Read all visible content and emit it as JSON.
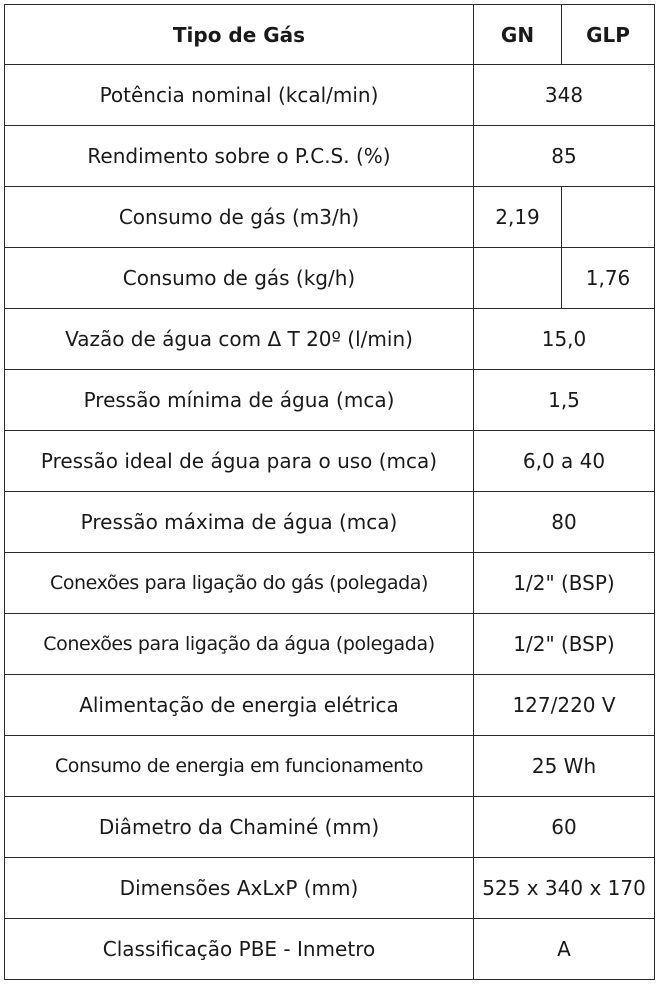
{
  "header": {
    "label": "Tipo de Gás",
    "gn": "GN",
    "glp": "GLP"
  },
  "rows": [
    {
      "label": "Potência nominal (kcal/min)",
      "value": "348"
    },
    {
      "label": "Rendimento sobre o P.C.S. (%)",
      "value": "85"
    },
    {
      "label": "Consumo de gás (m3/h)",
      "gn": "2,19",
      "glp": ""
    },
    {
      "label": "Consumo de gás (kg/h)",
      "gn": "",
      "glp": "1,76"
    },
    {
      "label": "Vazão de água com Δ T 20º (l/min)",
      "value": "15,0"
    },
    {
      "label": "Pressão mínima de água (mca)",
      "value": "1,5"
    },
    {
      "label": "Pressão ideal de água para o uso (mca)",
      "value": "6,0 a 40"
    },
    {
      "label": "Pressão máxima de água (mca)",
      "value": "80"
    },
    {
      "label": "Conexões para ligação do gás (polegada)",
      "value": "1/2\" (BSP)"
    },
    {
      "label": "Conexões para ligação da água (polegada)",
      "value": "1/2\" (BSP)"
    },
    {
      "label": "Alimentação de energia elétrica",
      "value": "127/220 V"
    },
    {
      "label": "Consumo de energia em funcionamento",
      "value": "25 Wh"
    },
    {
      "label": "Diâmetro da Chaminé (mm)",
      "value": "60"
    },
    {
      "label": "Dimensões AxLxP (mm)",
      "value": "525 x 340 x 170"
    },
    {
      "label": "Classificação PBE - Inmetro",
      "value": "A"
    }
  ]
}
